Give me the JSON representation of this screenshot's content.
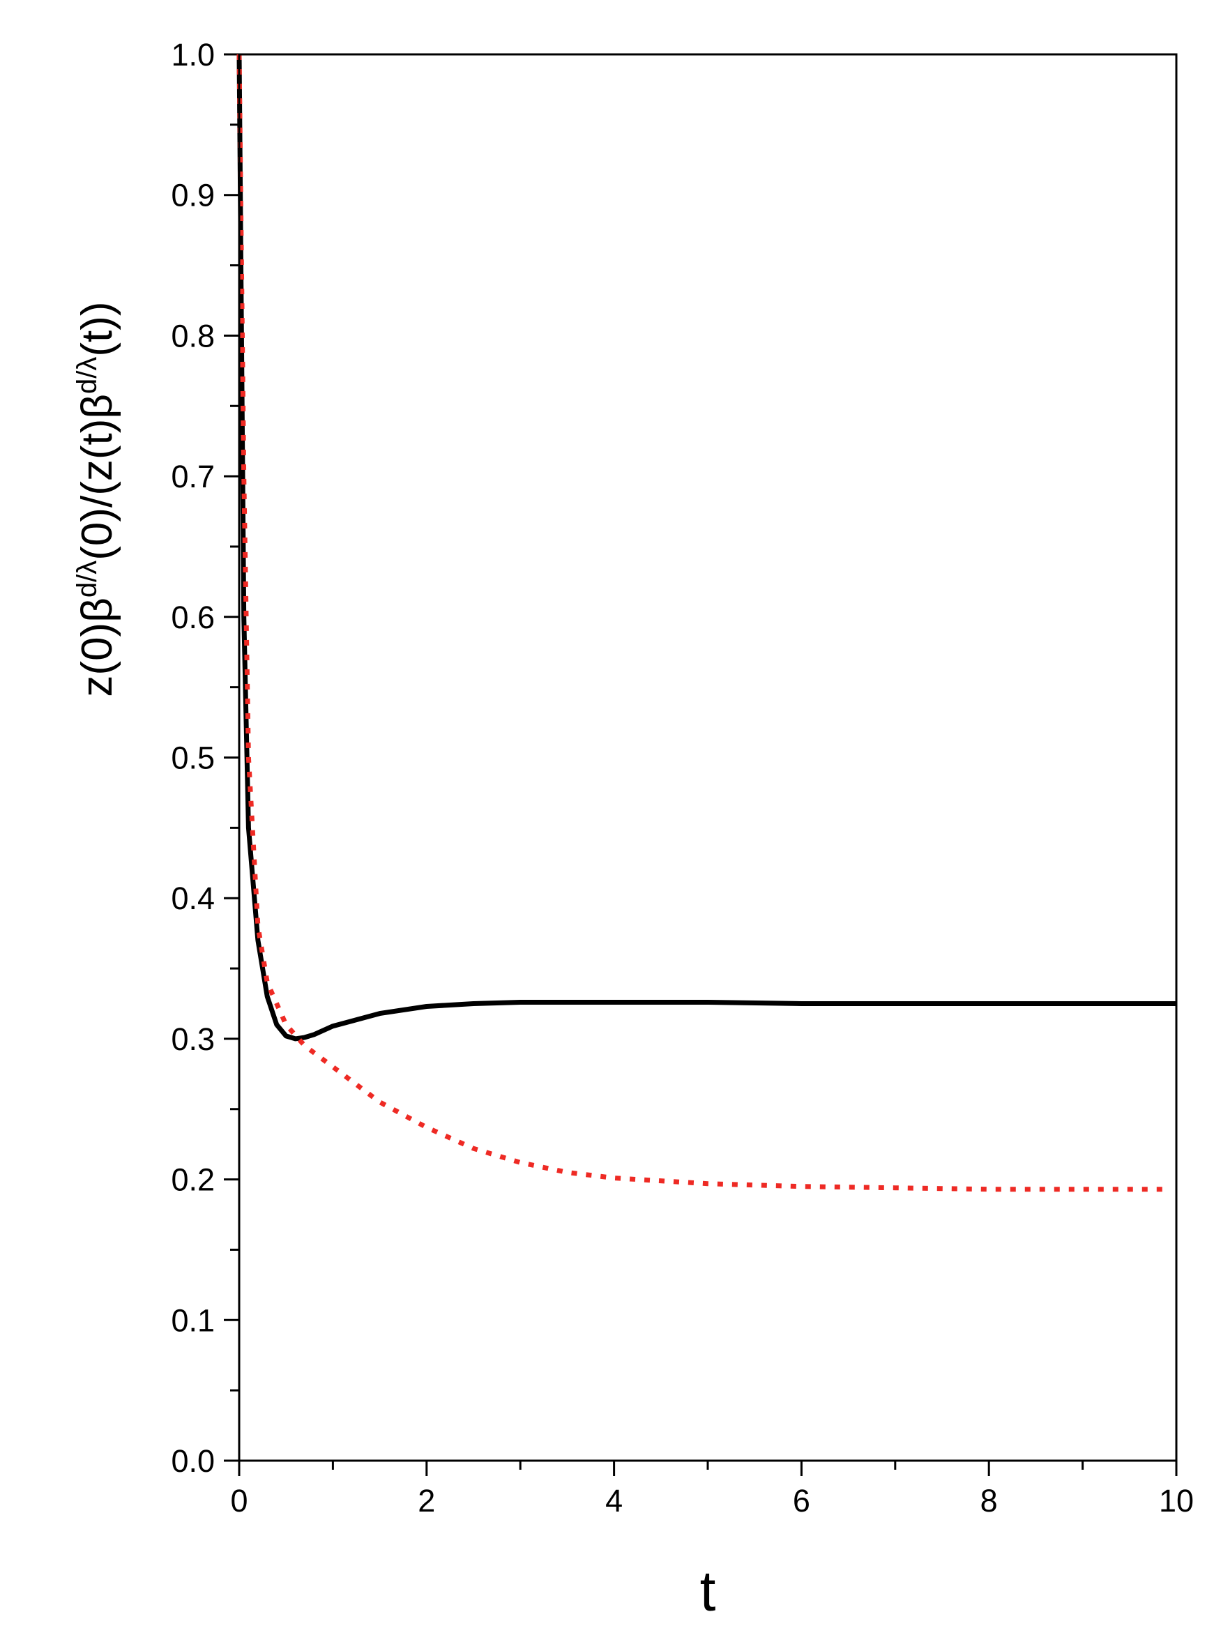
{
  "chart_data": {
    "type": "line",
    "ylabel": [
      "z(0)β",
      "d/λ",
      "(0)/(z(t)β",
      "d/λ",
      "(t))"
    ],
    "xlabel": "t",
    "xlim": [
      0,
      10
    ],
    "xticks": [
      0,
      2,
      4,
      6,
      8,
      10
    ],
    "xminorticks": [
      1,
      3,
      5,
      7,
      9
    ],
    "ylim": [
      0,
      1
    ],
    "yticks": [
      {
        "value": 0,
        "label": "0.0"
      },
      0.1,
      0.2,
      0.3,
      0.4,
      0.5,
      0.6,
      0.7,
      0.8,
      0.9,
      {
        "value": 1,
        "label": "1.0"
      }
    ],
    "yminorticks": [
      0.05,
      0.15,
      0.25,
      0.35,
      0.45,
      0.55,
      0.65,
      0.75,
      0.85,
      0.95
    ],
    "series": [
      {
        "color": "#000000",
        "style": "solid",
        "x": [
          0,
          0.05,
          0.1,
          0.2,
          0.3,
          0.4,
          0.5,
          0.6,
          0.7,
          0.8,
          1.0,
          1.5,
          2,
          2.5,
          3,
          4,
          5,
          6,
          8,
          10
        ],
        "values": [
          1.0,
          0.6,
          0.45,
          0.37,
          0.33,
          0.31,
          0.302,
          0.3,
          0.301,
          0.303,
          0.309,
          0.318,
          0.323,
          0.325,
          0.326,
          0.326,
          0.326,
          0.325,
          0.325,
          0.325
        ]
      },
      {
        "color": "#ee2a24",
        "style": "dotted",
        "x": [
          0,
          0.05,
          0.1,
          0.2,
          0.3,
          0.5,
          0.7,
          1,
          1.5,
          2,
          2.5,
          3,
          3.5,
          4,
          5,
          6,
          7,
          8,
          9,
          9.9
        ],
        "values": [
          1.0,
          0.7,
          0.5,
          0.38,
          0.34,
          0.31,
          0.295,
          0.28,
          0.255,
          0.237,
          0.222,
          0.212,
          0.205,
          0.201,
          0.197,
          0.195,
          0.194,
          0.193,
          0.193,
          0.193
        ]
      }
    ]
  }
}
